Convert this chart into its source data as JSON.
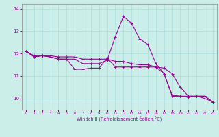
{
  "xlabel": "Windchill (Refroidissement éolien,°C)",
  "bg_color": "#cceee8",
  "line_color": "#990099",
  "grid_color": "#aadddd",
  "hours": [
    0,
    1,
    2,
    3,
    4,
    5,
    6,
    7,
    8,
    9,
    10,
    11,
    12,
    13,
    14,
    15,
    16,
    17,
    18,
    19,
    20,
    21,
    22,
    23
  ],
  "line1": [
    12.1,
    11.85,
    11.9,
    11.85,
    11.75,
    11.75,
    11.3,
    11.3,
    11.35,
    11.35,
    11.8,
    11.4,
    11.4,
    11.4,
    11.4,
    11.4,
    11.4,
    11.1,
    10.1,
    10.1,
    10.1,
    10.1,
    10.1,
    9.85
  ],
  "line2": [
    12.1,
    11.85,
    11.9,
    11.85,
    11.75,
    11.75,
    11.75,
    11.55,
    11.55,
    11.55,
    11.7,
    12.75,
    13.65,
    13.35,
    12.65,
    12.4,
    11.55,
    11.1,
    10.15,
    10.1,
    10.05,
    10.1,
    10.1,
    9.85
  ],
  "line3": [
    12.1,
    11.9,
    11.9,
    11.9,
    11.85,
    11.85,
    11.85,
    11.75,
    11.75,
    11.75,
    11.75,
    11.65,
    11.65,
    11.55,
    11.5,
    11.5,
    11.4,
    11.35,
    11.1,
    10.5,
    10.1,
    10.1,
    10.0,
    9.85
  ],
  "ylim": [
    9.5,
    14.2
  ],
  "yticks": [
    10,
    11,
    12,
    13,
    14
  ],
  "xlim": [
    -0.5,
    23.5
  ]
}
